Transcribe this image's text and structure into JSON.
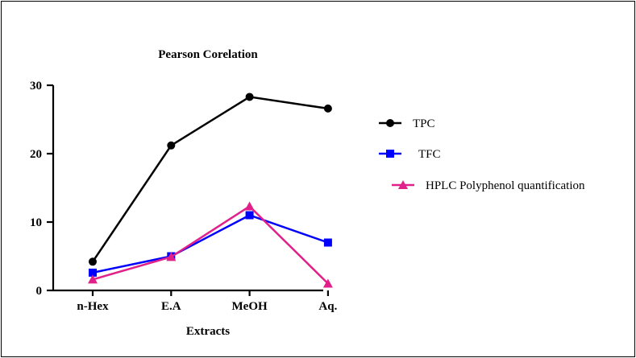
{
  "chart_data": {
    "type": "line",
    "title": "Pearson Corelation",
    "xlabel": "Extracts",
    "ylabel": "",
    "categories": [
      "n-Hex",
      "E.A",
      "MeOH",
      "Aq."
    ],
    "ylim": [
      0,
      30
    ],
    "yticks": [
      0,
      10,
      20,
      30
    ],
    "grid": false,
    "legend_position": "right",
    "series": [
      {
        "name": "TPC",
        "values": [
          4.2,
          21.2,
          28.3,
          26.6
        ],
        "color": "#000000",
        "marker": "circle"
      },
      {
        "name": "TFC",
        "values": [
          2.6,
          5.0,
          11.0,
          7.0
        ],
        "color": "#0000ff",
        "marker": "square"
      },
      {
        "name": "HPLC Polyphenol quantification",
        "values": [
          1.6,
          4.9,
          12.3,
          1.0
        ],
        "color": "#e0218a",
        "marker": "triangle"
      }
    ]
  }
}
